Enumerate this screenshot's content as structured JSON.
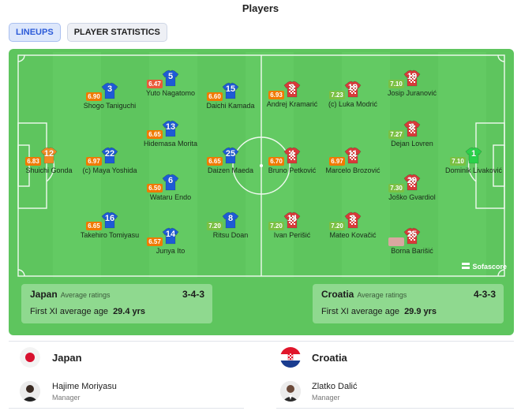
{
  "title": "Players",
  "tabs": [
    {
      "label": "LINEUPS",
      "active": true
    },
    {
      "label": "PLAYER STATISTICS",
      "active": false
    }
  ],
  "branding": "Sofascore",
  "colors": {
    "japan_kit": "#1e5bd6",
    "croatia_kit": "#d83a3a",
    "croatia_gk_kit": "#2ad14a",
    "japan_gk_kit": "#f08a24",
    "rating_high": "#7ac043",
    "rating_mid": "#e0a100",
    "rating_low": "#f07a00"
  },
  "teams": {
    "home": {
      "name": "Japan",
      "avg_ratings_label": "Average ratings",
      "formation": "3-4-3",
      "age_label": "First XI average age",
      "age_value": "29.4 yrs",
      "manager_name": "Hajime Moriyasu",
      "manager_role": "Manager"
    },
    "away": {
      "name": "Croatia",
      "avg_ratings_label": "Average ratings",
      "formation": "4-3-3",
      "age_label": "First XI average age",
      "age_value": "29.9 yrs",
      "manager_name": "Zlatko Dalić",
      "manager_role": "Manager"
    }
  },
  "japan_players": [
    {
      "number": "12",
      "name": "Shuichi Gonda",
      "rating": "6.83",
      "rating_color": "#f07a00",
      "gk": true
    },
    {
      "number": "3",
      "name": "Shogo Taniguchi",
      "rating": "6.90",
      "rating_color": "#f07a00"
    },
    {
      "number": "22",
      "name": "(c) Maya Yoshida",
      "rating": "6.97",
      "rating_color": "#f07a00"
    },
    {
      "number": "16",
      "name": "Takehiro Tomiyasu",
      "rating": "6.65",
      "rating_color": "#f07a00"
    },
    {
      "number": "5",
      "name": "Yuto Nagatomo",
      "rating": "6.47",
      "rating_color": "#e85a3a"
    },
    {
      "number": "13",
      "name": "Hidemasa Morita",
      "rating": "6.65",
      "rating_color": "#f07a00"
    },
    {
      "number": "6",
      "name": "Wataru Endo",
      "rating": "6.50",
      "rating_color": "#f07a00"
    },
    {
      "number": "14",
      "name": "Junya Ito",
      "rating": "6.57",
      "rating_color": "#f07a00"
    },
    {
      "number": "15",
      "name": "Daichi Kamada",
      "rating": "6.60",
      "rating_color": "#f07a00"
    },
    {
      "number": "25",
      "name": "Daizen Maeda",
      "rating": "6.65",
      "rating_color": "#f07a00"
    },
    {
      "number": "8",
      "name": "Ritsu Doan",
      "rating": "7.20",
      "rating_color": "#7ac043"
    }
  ],
  "croatia_players": [
    {
      "number": "9",
      "name": "Andrej Kramarić",
      "rating": "6.93",
      "rating_color": "#f07a00"
    },
    {
      "number": "4",
      "name": "Bruno Petković",
      "rating": "6.70",
      "rating_color": "#f07a00"
    },
    {
      "number": "14",
      "name": "Ivan Perišić",
      "rating": "7.20",
      "rating_color": "#7ac043"
    },
    {
      "number": "10",
      "name": "(c) Luka Modrić",
      "rating": "7.23",
      "rating_color": "#7ac043"
    },
    {
      "number": "11",
      "name": "Marcelo Brozović",
      "rating": "6.97",
      "rating_color": "#f07a00"
    },
    {
      "number": "8",
      "name": "Mateo Kovačić",
      "rating": "7.20",
      "rating_color": "#7ac043"
    },
    {
      "number": "19",
      "name": "Josip Juranović",
      "rating": "7.10",
      "rating_color": "#7ac043"
    },
    {
      "number": "6",
      "name": "Dejan Lovren",
      "rating": "7.27",
      "rating_color": "#7ac043"
    },
    {
      "number": "20",
      "name": "Joško Gvardiol",
      "rating": "7.30",
      "rating_color": "#7ac043"
    },
    {
      "number": "25",
      "name": "Borna Barišić",
      "rating": "",
      "rating_color": "#d9a7a0"
    },
    {
      "number": "1",
      "name": "Dominik Livaković",
      "rating": "7.10",
      "rating_color": "#7ac043",
      "gk": true
    }
  ]
}
